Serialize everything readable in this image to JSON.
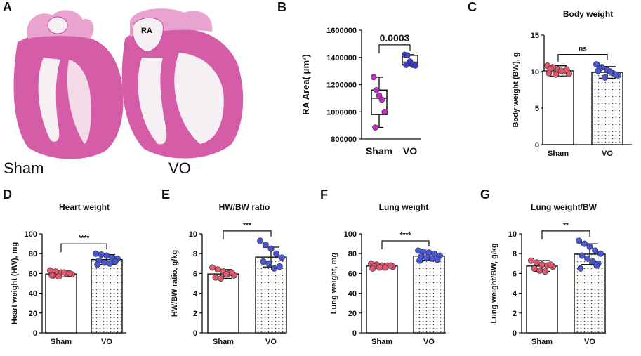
{
  "panels": {
    "A": {
      "label": "A",
      "left_caption": "Sham",
      "right_caption": "VO",
      "inset_label": "RA"
    }
  },
  "colors": {
    "sham": "#e0586e",
    "vo": "#4a57d4",
    "ra_point": "#c42fc8",
    "ra_point_vo": "#3d3fd0",
    "tissue": "#d55ca6",
    "tissue_light": "#e9a3cf",
    "lumen": "#f6f0f4"
  },
  "chart_data": [
    {
      "panel": "B",
      "type": "box",
      "title": "",
      "ylabel": "RA Area( μm²)",
      "categories": [
        "Sham",
        "VO"
      ],
      "ylim": [
        800000,
        1600000
      ],
      "yticks": [
        800000,
        1000000,
        1200000,
        1400000,
        1600000
      ],
      "tick_labels": [
        "800000",
        "1000000",
        "1200000",
        "1400000",
        "1600000"
      ],
      "significance": "0.0003",
      "series": [
        {
          "name": "Sham",
          "q1": 980000,
          "median": 1100000,
          "q3": 1160000,
          "min": 885000,
          "max": 1255000,
          "points": [
            1255000,
            1160000,
            1120000,
            1090000,
            1000000,
            885000
          ]
        },
        {
          "name": "VO",
          "q1": 1345000,
          "median": 1365000,
          "q3": 1415000,
          "min": 1340000,
          "max": 1420000,
          "points": [
            1420000,
            1415000,
            1370000,
            1345000,
            1340000,
            1345000
          ]
        }
      ]
    },
    {
      "panel": "C",
      "type": "bar",
      "title": "Body weight",
      "ylabel": "Body weight (BW), g",
      "categories": [
        "Sham",
        "VO"
      ],
      "ylim": [
        0,
        15
      ],
      "yticks": [
        0,
        5,
        10,
        15
      ],
      "tick_labels": [
        "0",
        "5",
        "10",
        "15"
      ],
      "significance": "ns",
      "series": [
        {
          "name": "Sham",
          "value": 10.1,
          "sd": 0.7,
          "points": [
            10.8,
            10.6,
            10.2,
            10.0,
            9.7,
            10.4,
            9.6,
            10.1,
            10.3,
            9.8
          ]
        },
        {
          "name": "VO",
          "value": 9.9,
          "sd": 0.8,
          "points": [
            11.0,
            10.6,
            10.2,
            9.8,
            9.5,
            10.4,
            9.2,
            10.0,
            9.6,
            10.1
          ]
        }
      ]
    },
    {
      "panel": "D",
      "type": "bar",
      "title": "Heart weight",
      "ylabel": "Heart weight (HW), mg",
      "categories": [
        "Sham",
        "VO"
      ],
      "ylim": [
        0,
        100
      ],
      "yticks": [
        0,
        20,
        40,
        60,
        80,
        100
      ],
      "tick_labels": [
        "0",
        "20",
        "40",
        "60",
        "80",
        "100"
      ],
      "significance": "****",
      "series": [
        {
          "name": "Sham",
          "value": 59.5,
          "sd": 3.0,
          "points": [
            63,
            62,
            61,
            60,
            59,
            58,
            57,
            61,
            60,
            58
          ]
        },
        {
          "name": "VO",
          "value": 74,
          "sd": 5.0,
          "points": [
            80,
            79,
            78,
            76,
            75,
            73,
            71,
            70,
            72,
            69
          ]
        }
      ]
    },
    {
      "panel": "E",
      "type": "bar",
      "title": "HW/BW ratio",
      "ylabel": "HW/BW ratio, g/kg",
      "categories": [
        "Sham",
        "VO"
      ],
      "ylim": [
        0,
        10
      ],
      "yticks": [
        0,
        2,
        4,
        6,
        8,
        10
      ],
      "tick_labels": [
        "0",
        "2",
        "4",
        "6",
        "8",
        "10"
      ],
      "significance": "***",
      "series": [
        {
          "name": "Sham",
          "value": 5.95,
          "sd": 0.45,
          "points": [
            6.6,
            6.4,
            6.2,
            6.0,
            5.8,
            5.6,
            5.5,
            5.9,
            6.1
          ]
        },
        {
          "name": "VO",
          "value": 7.65,
          "sd": 1.0,
          "points": [
            9.3,
            8.9,
            8.5,
            8.0,
            7.6,
            7.2,
            7.0,
            6.5,
            6.7
          ]
        }
      ]
    },
    {
      "panel": "F",
      "type": "bar",
      "title": "Lung weight",
      "ylabel": "Lung weight, mg",
      "categories": [
        "Sham",
        "VO"
      ],
      "ylim": [
        0,
        100
      ],
      "yticks": [
        0,
        20,
        40,
        60,
        80,
        100
      ],
      "tick_labels": [
        "0",
        "20",
        "40",
        "60",
        "80",
        "100"
      ],
      "significance": "****",
      "series": [
        {
          "name": "Sham",
          "value": 67.5,
          "sd": 2.0,
          "points": [
            70,
            69,
            68,
            68,
            67,
            67,
            66,
            66,
            68,
            65
          ]
        },
        {
          "name": "VO",
          "value": 77.5,
          "sd": 4.0,
          "points": [
            83,
            82,
            81,
            80,
            78,
            77,
            76,
            75,
            74,
            73
          ]
        }
      ]
    },
    {
      "panel": "G",
      "type": "bar",
      "title": "Lung weight/BW",
      "ylabel": "Lung weight/BW, g/kg",
      "categories": [
        "Sham",
        "VO"
      ],
      "ylim": [
        0,
        10
      ],
      "yticks": [
        0,
        2,
        4,
        6,
        8,
        10
      ],
      "tick_labels": [
        "0",
        "2",
        "4",
        "6",
        "8",
        "10"
      ],
      "significance": "**",
      "series": [
        {
          "name": "Sham",
          "value": 6.75,
          "sd": 0.55,
          "points": [
            7.3,
            7.1,
            6.9,
            6.8,
            6.7,
            6.5,
            6.3,
            6.2,
            6.9
          ]
        },
        {
          "name": "VO",
          "value": 7.95,
          "sd": 1.05,
          "points": [
            9.3,
            9.0,
            8.7,
            8.3,
            8.0,
            7.8,
            7.5,
            7.2,
            7.0,
            6.5,
            6.8
          ]
        }
      ]
    }
  ]
}
